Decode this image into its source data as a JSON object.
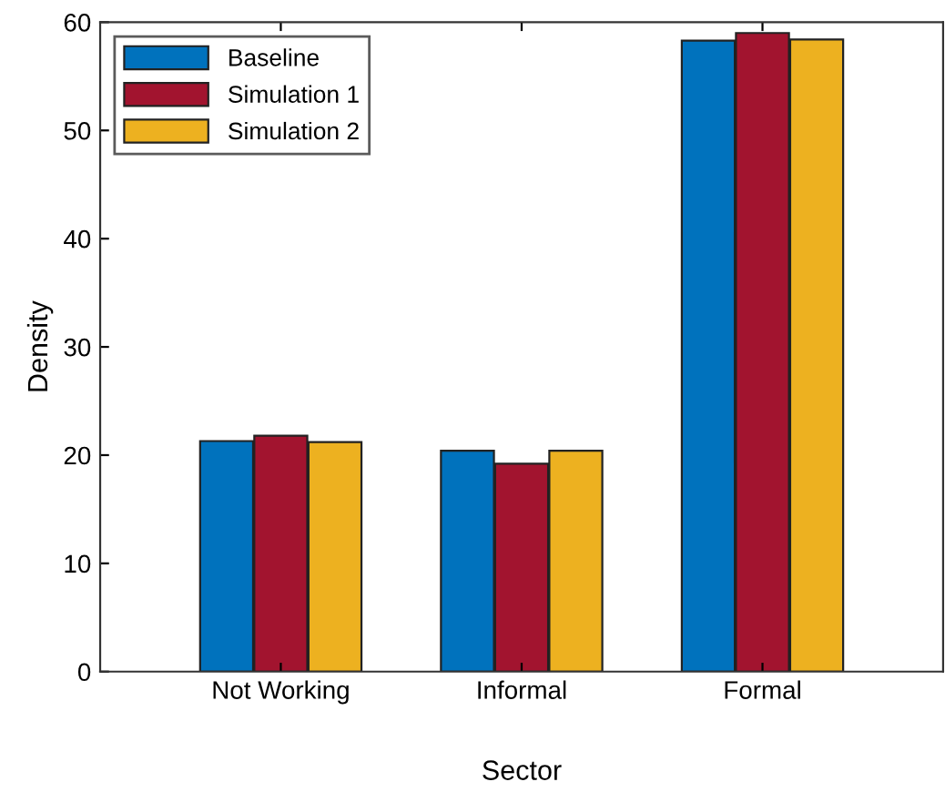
{
  "chart_data": {
    "type": "bar",
    "xlabel": "Sector",
    "ylabel": "Density",
    "categories": [
      "Not Working",
      "Informal",
      "Formal"
    ],
    "series": [
      {
        "name": "Baseline",
        "color": "#0072bd",
        "values": [
          21.3,
          20.4,
          58.3
        ]
      },
      {
        "name": "Simulation 1",
        "color": "#a2142f",
        "values": [
          21.8,
          19.2,
          59.0
        ]
      },
      {
        "name": "Simulation 2",
        "color": "#edb120",
        "values": [
          21.2,
          20.4,
          58.4
        ]
      }
    ],
    "ylim": [
      0,
      60
    ],
    "yticks": [
      0,
      10,
      20,
      30,
      40,
      50,
      60
    ],
    "grid": false,
    "legend": "top left"
  }
}
